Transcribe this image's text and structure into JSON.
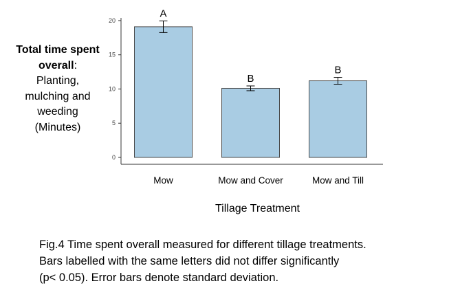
{
  "chart_data": {
    "type": "bar",
    "categories": [
      "Mow",
      "Mow and Cover",
      "Mow and Till"
    ],
    "values": [
      19.1,
      10.1,
      11.2
    ],
    "error": [
      0.85,
      0.35,
      0.5
    ],
    "significance_labels": [
      "A",
      "B",
      "B"
    ],
    "ylim": [
      0,
      21
    ],
    "yticks": [
      0,
      5,
      10,
      15,
      20
    ],
    "bar_color": "#a9cce3",
    "bar_edge_color": "#4a4a4a",
    "grid": false,
    "ylabel_bold": "Total time spent overall",
    "ylabel_colon": ":",
    "ylabel_rest": [
      "Planting,",
      "mulching and",
      "weeding",
      "(Minutes)"
    ],
    "xlabel": "Tillage Treatment"
  },
  "caption": [
    "Fig.4 Time spent overall measured for different tillage treatments.",
    "Bars labelled with the same letters did not differ significantly",
    "(p< 0.05). Error bars denote standard deviation."
  ]
}
